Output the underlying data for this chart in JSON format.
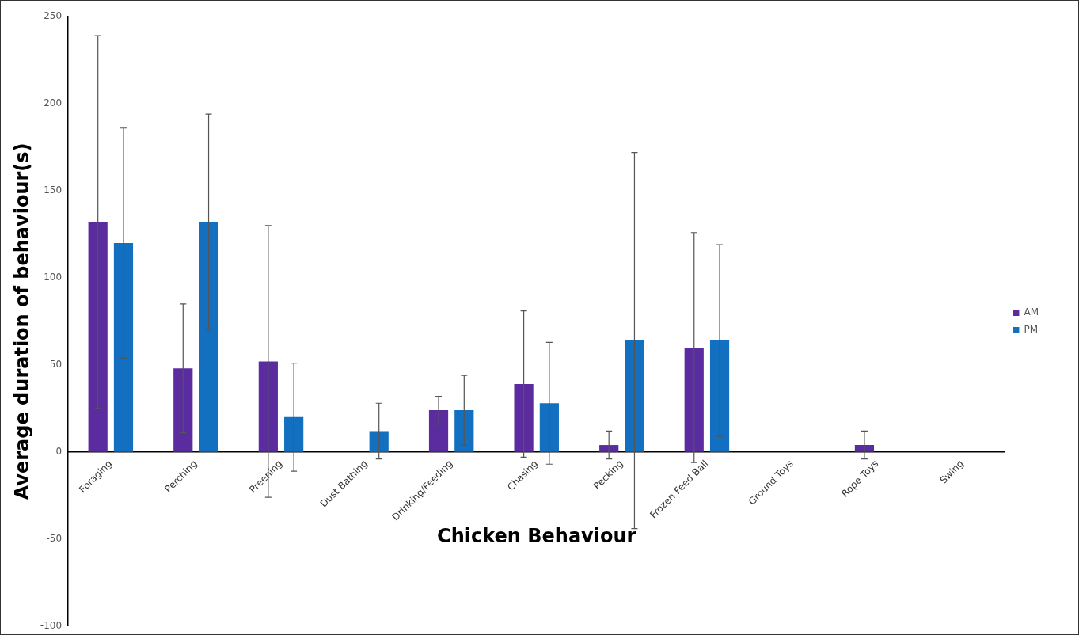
{
  "chart_data": {
    "type": "bar",
    "xlabel": "Chicken Behaviour",
    "ylabel": "Average duration of behaviour(s)",
    "categories": [
      "Foraging",
      "Perching",
      "Preening",
      "Dust Bathing",
      "Drinking/Feeding",
      "Chasing",
      "Pecking",
      "Frozen Feed Ball",
      "Ground Toys",
      "Rope Toys",
      "Swing"
    ],
    "series": [
      {
        "name": "AM",
        "color": "#5a2ca0",
        "values": [
          132,
          48,
          52,
          0,
          24,
          39,
          4,
          60,
          0,
          4,
          0
        ],
        "errors": [
          107,
          37,
          78,
          null,
          8,
          42,
          8,
          66,
          null,
          8,
          null
        ]
      },
      {
        "name": "PM",
        "color": "#1370c0",
        "values": [
          120,
          132,
          20,
          12,
          24,
          28,
          64,
          64,
          0,
          0,
          0
        ],
        "errors": [
          66,
          62,
          31,
          16,
          20,
          35,
          108,
          55,
          null,
          null,
          null
        ]
      }
    ],
    "ylim": [
      -100,
      250
    ],
    "yticks": [
      -100,
      -50,
      0,
      50,
      100,
      150,
      200,
      250
    ],
    "legend": "right"
  }
}
